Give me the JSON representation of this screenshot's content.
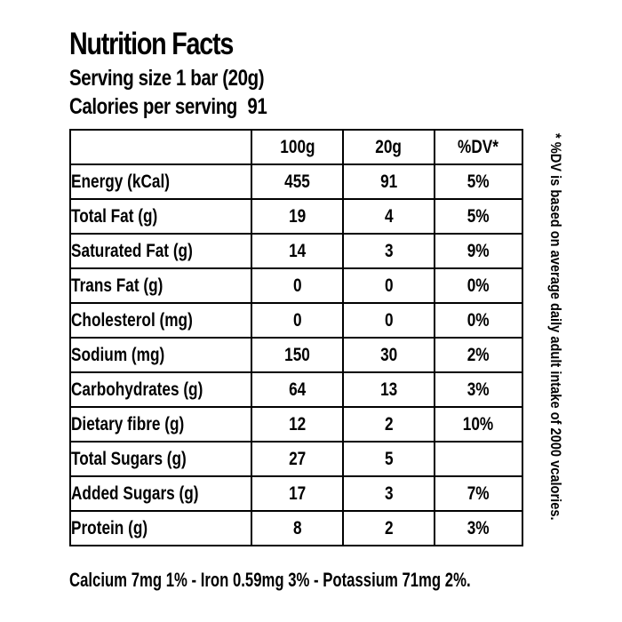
{
  "title": "Nutrition Facts",
  "serving_size": "Serving size 1 bar (20g)",
  "calories": {
    "label": "Calories per serving",
    "value": "91"
  },
  "table": {
    "headers": [
      "",
      "100g",
      "20g",
      "%DV*"
    ],
    "rows": [
      {
        "label": "Energy (kCal)",
        "per_100g": "455",
        "per_20g": "91",
        "dv": "5%"
      },
      {
        "label": "Total Fat (g)",
        "per_100g": "19",
        "per_20g": "4",
        "dv": "5%"
      },
      {
        "label": "Saturated Fat (g)",
        "per_100g": "14",
        "per_20g": "3",
        "dv": "9%"
      },
      {
        "label": "Trans Fat (g)",
        "per_100g": "0",
        "per_20g": "0",
        "dv": "0%"
      },
      {
        "label": "Cholesterol (mg)",
        "per_100g": "0",
        "per_20g": "0",
        "dv": "0%"
      },
      {
        "label": "Sodium (mg)",
        "per_100g": "150",
        "per_20g": "30",
        "dv": "2%"
      },
      {
        "label": "Carbohydrates (g)",
        "per_100g": "64",
        "per_20g": "13",
        "dv": "3%"
      },
      {
        "label": "Dietary fibre (g)",
        "per_100g": "12",
        "per_20g": "2",
        "dv": "10%"
      },
      {
        "label": "Total Sugars (g)",
        "per_100g": "27",
        "per_20g": "5",
        "dv": ""
      },
      {
        "label": "Added Sugars (g)",
        "per_100g": "17",
        "per_20g": "3",
        "dv": "7%"
      },
      {
        "label": "Protein (g)",
        "per_100g": "8",
        "per_20g": "2",
        "dv": "3%"
      }
    ]
  },
  "footer": "Calcium 7mg 1% - Iron 0.59mg 3% - Potassium 71mg 2%.",
  "side_note": "* %DV is based on average daily adult intake of 2000 vcalories."
}
